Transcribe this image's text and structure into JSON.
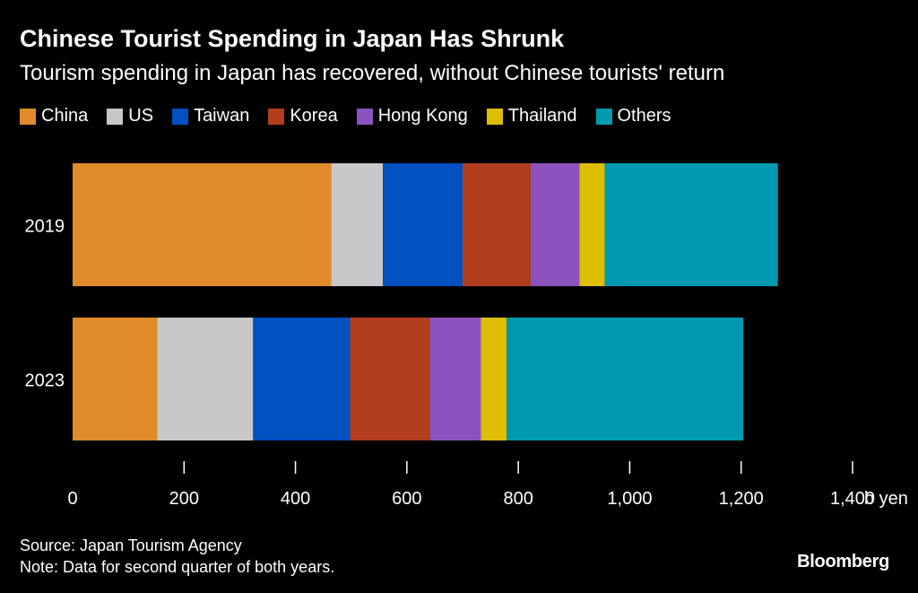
{
  "title": "Chinese Tourist Spending in Japan Has Shrunk",
  "subtitle": "Tourism spending in Japan has recovered, without Chinese tourists' return",
  "source": "Source: Japan Tourism Agency",
  "note": "Note: Data for second quarter of both years.",
  "brand": "Bloomberg",
  "chart_data": {
    "type": "bar",
    "orientation": "horizontal",
    "stacked": true,
    "categories": [
      "2019",
      "2023"
    ],
    "series": [
      {
        "name": "China",
        "color": "#e08b2a",
        "values": [
          464,
          152
        ]
      },
      {
        "name": "US",
        "color": "#c8c8c8",
        "values": [
          93,
          172
        ]
      },
      {
        "name": "Taiwan",
        "color": "#0050c0",
        "values": [
          143,
          174
        ]
      },
      {
        "name": "Korea",
        "color": "#b23e1d",
        "values": [
          122,
          143
        ]
      },
      {
        "name": "Hong Kong",
        "color": "#8e52be",
        "values": [
          88,
          92
        ]
      },
      {
        "name": "Thailand",
        "color": "#ddbe00",
        "values": [
          45,
          46
        ]
      },
      {
        "name": "Others",
        "color": "#009ab0",
        "values": [
          311,
          425
        ]
      }
    ],
    "xlim": [
      0,
      1400
    ],
    "xticks": [
      0,
      200,
      400,
      600,
      800,
      1000,
      1200,
      1400
    ],
    "xtick_labels": [
      "0",
      "200",
      "400",
      "600",
      "800",
      "1,000",
      "1,200",
      "1,400"
    ],
    "xunit": "b yen",
    "legend_position": "top",
    "grid": false
  }
}
